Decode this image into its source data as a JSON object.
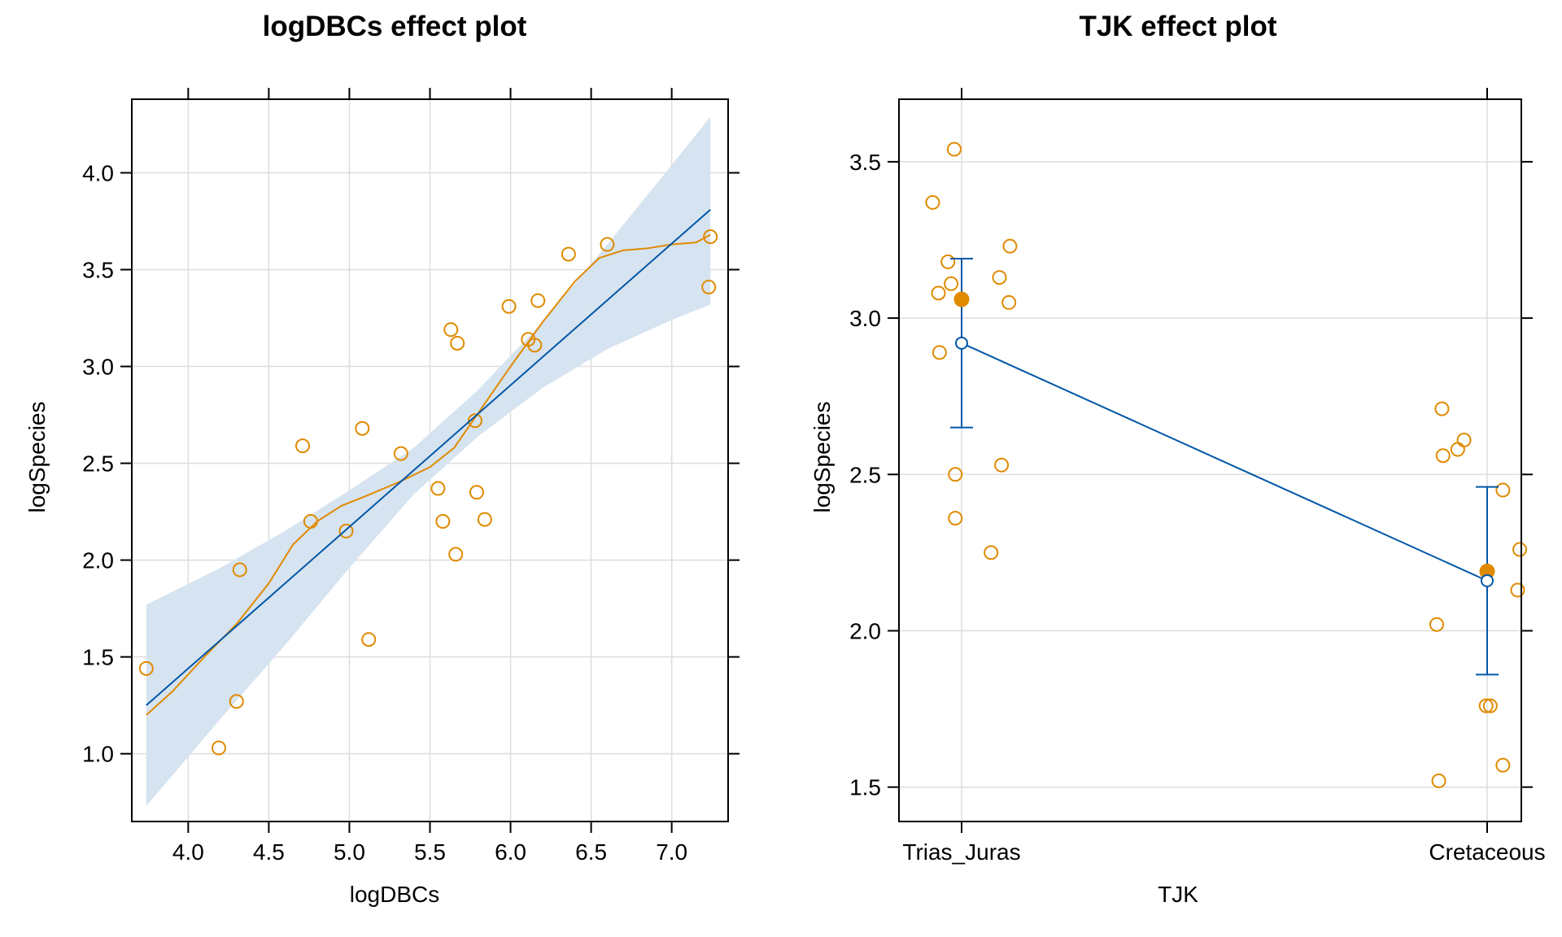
{
  "colors": {
    "fit": "#0057a8",
    "band": "#d6e3f0",
    "points": "#e08a00",
    "grid": "#dddddd",
    "axis": "#000000"
  },
  "chart_data": [
    {
      "type": "scatter",
      "title": "logDBCs effect plot",
      "xlabel": "logDBCs",
      "ylabel": "logSpecies",
      "xlim": [
        3.65,
        7.35
      ],
      "ylim": [
        0.65,
        4.38
      ],
      "xticks": [
        4.0,
        4.5,
        5.0,
        5.5,
        6.0,
        6.5,
        7.0
      ],
      "xtick_labels": [
        "4.0",
        "4.5",
        "5.0",
        "5.5",
        "6.0",
        "6.5",
        "7.0"
      ],
      "yticks": [
        1.0,
        1.5,
        2.0,
        2.5,
        3.0,
        3.5,
        4.0
      ],
      "ytick_labels": [
        "1.0",
        "1.5",
        "2.0",
        "2.5",
        "3.0",
        "3.5",
        "4.0"
      ],
      "grid": true,
      "points": [
        {
          "x": 3.74,
          "y": 1.44
        },
        {
          "x": 4.19,
          "y": 1.03
        },
        {
          "x": 4.3,
          "y": 1.27
        },
        {
          "x": 4.32,
          "y": 1.95
        },
        {
          "x": 4.71,
          "y": 2.59
        },
        {
          "x": 4.76,
          "y": 2.2
        },
        {
          "x": 4.98,
          "y": 2.15
        },
        {
          "x": 5.08,
          "y": 2.68
        },
        {
          "x": 5.12,
          "y": 1.59
        },
        {
          "x": 5.32,
          "y": 2.55
        },
        {
          "x": 5.55,
          "y": 2.37
        },
        {
          "x": 5.58,
          "y": 2.2
        },
        {
          "x": 5.63,
          "y": 3.19
        },
        {
          "x": 5.66,
          "y": 2.03
        },
        {
          "x": 5.67,
          "y": 3.12
        },
        {
          "x": 5.78,
          "y": 2.72
        },
        {
          "x": 5.79,
          "y": 2.35
        },
        {
          "x": 5.84,
          "y": 2.21
        },
        {
          "x": 5.99,
          "y": 3.31
        },
        {
          "x": 6.11,
          "y": 3.14
        },
        {
          "x": 6.15,
          "y": 3.11
        },
        {
          "x": 6.17,
          "y": 3.34
        },
        {
          "x": 6.36,
          "y": 3.58
        },
        {
          "x": 6.6,
          "y": 3.63
        },
        {
          "x": 7.23,
          "y": 3.41
        },
        {
          "x": 7.24,
          "y": 3.67
        }
      ],
      "fit_line": [
        {
          "x": 3.74,
          "y": 1.25
        },
        {
          "x": 7.24,
          "y": 3.81
        }
      ],
      "confidence_band": {
        "x": [
          3.74,
          4.2,
          4.6,
          5.0,
          5.4,
          5.8,
          6.2,
          6.6,
          7.0,
          7.24
        ],
        "lower": [
          0.73,
          1.18,
          1.56,
          1.96,
          2.34,
          2.64,
          2.89,
          3.09,
          3.24,
          3.32
        ],
        "upper": [
          1.77,
          1.96,
          2.15,
          2.36,
          2.58,
          2.88,
          3.23,
          3.63,
          4.04,
          4.29
        ]
      },
      "smooth_line": [
        {
          "x": 3.74,
          "y": 1.2
        },
        {
          "x": 3.9,
          "y": 1.32
        },
        {
          "x": 4.1,
          "y": 1.5
        },
        {
          "x": 4.3,
          "y": 1.67
        },
        {
          "x": 4.5,
          "y": 1.88
        },
        {
          "x": 4.65,
          "y": 2.08
        },
        {
          "x": 4.8,
          "y": 2.2
        },
        {
          "x": 4.95,
          "y": 2.28
        },
        {
          "x": 5.1,
          "y": 2.33
        },
        {
          "x": 5.3,
          "y": 2.4
        },
        {
          "x": 5.5,
          "y": 2.48
        },
        {
          "x": 5.65,
          "y": 2.58
        },
        {
          "x": 5.8,
          "y": 2.76
        },
        {
          "x": 6.0,
          "y": 3.0
        },
        {
          "x": 6.2,
          "y": 3.23
        },
        {
          "x": 6.4,
          "y": 3.44
        },
        {
          "x": 6.55,
          "y": 3.56
        },
        {
          "x": 6.7,
          "y": 3.6
        },
        {
          "x": 6.85,
          "y": 3.61
        },
        {
          "x": 7.0,
          "y": 3.63
        },
        {
          "x": 7.15,
          "y": 3.64
        },
        {
          "x": 7.24,
          "y": 3.68
        }
      ]
    },
    {
      "type": "scatter",
      "title": "TJK effect plot",
      "xlabel": "TJK",
      "ylabel": "logSpecies",
      "categories": [
        "Trias_Juras",
        "Cretaceous"
      ],
      "ylim": [
        1.39,
        3.7
      ],
      "yticks": [
        1.5,
        2.0,
        2.5,
        3.0,
        3.5
      ],
      "ytick_labels": [
        "1.5",
        "2.0",
        "2.5",
        "3.0",
        "3.5"
      ],
      "grid": true,
      "effects": [
        {
          "category": "Trias_Juras",
          "fit": 2.92,
          "lower": 2.65,
          "upper": 3.19,
          "mean": 3.06
        },
        {
          "category": "Cretaceous",
          "fit": 2.16,
          "lower": 1.86,
          "upper": 2.46,
          "mean": 2.19
        }
      ],
      "points": [
        {
          "category": "Trias_Juras",
          "jitter": -0.055,
          "y": 3.37
        },
        {
          "category": "Trias_Juras",
          "jitter": -0.014,
          "y": 3.54
        },
        {
          "category": "Trias_Juras",
          "jitter": -0.026,
          "y": 3.18
        },
        {
          "category": "Trias_Juras",
          "jitter": -0.02,
          "y": 3.11
        },
        {
          "category": "Trias_Juras",
          "jitter": -0.044,
          "y": 3.08
        },
        {
          "category": "Trias_Juras",
          "jitter": -0.042,
          "y": 2.89
        },
        {
          "category": "Trias_Juras",
          "jitter": 0.092,
          "y": 3.23
        },
        {
          "category": "Trias_Juras",
          "jitter": 0.072,
          "y": 3.13
        },
        {
          "category": "Trias_Juras",
          "jitter": 0.09,
          "y": 3.05
        },
        {
          "category": "Trias_Juras",
          "jitter": -0.012,
          "y": 2.5
        },
        {
          "category": "Trias_Juras",
          "jitter": -0.012,
          "y": 2.36
        },
        {
          "category": "Trias_Juras",
          "jitter": 0.076,
          "y": 2.53
        },
        {
          "category": "Trias_Juras",
          "jitter": 0.056,
          "y": 2.25
        },
        {
          "category": "Cretaceous",
          "jitter": -0.086,
          "y": 2.71
        },
        {
          "category": "Cretaceous",
          "jitter": -0.084,
          "y": 2.56
        },
        {
          "category": "Cretaceous",
          "jitter": -0.056,
          "y": 2.58
        },
        {
          "category": "Cretaceous",
          "jitter": -0.044,
          "y": 2.61
        },
        {
          "category": "Cretaceous",
          "jitter": 0.03,
          "y": 2.45
        },
        {
          "category": "Cretaceous",
          "jitter": 0.062,
          "y": 2.26
        },
        {
          "category": "Cretaceous",
          "jitter": 0.058,
          "y": 2.13
        },
        {
          "category": "Cretaceous",
          "jitter": -0.096,
          "y": 2.02
        },
        {
          "category": "Cretaceous",
          "jitter": -0.002,
          "y": 1.76
        },
        {
          "category": "Cretaceous",
          "jitter": 0.006,
          "y": 1.76
        },
        {
          "category": "Cretaceous",
          "jitter": 0.03,
          "y": 1.57
        },
        {
          "category": "Cretaceous",
          "jitter": -0.092,
          "y": 1.52
        }
      ]
    }
  ]
}
